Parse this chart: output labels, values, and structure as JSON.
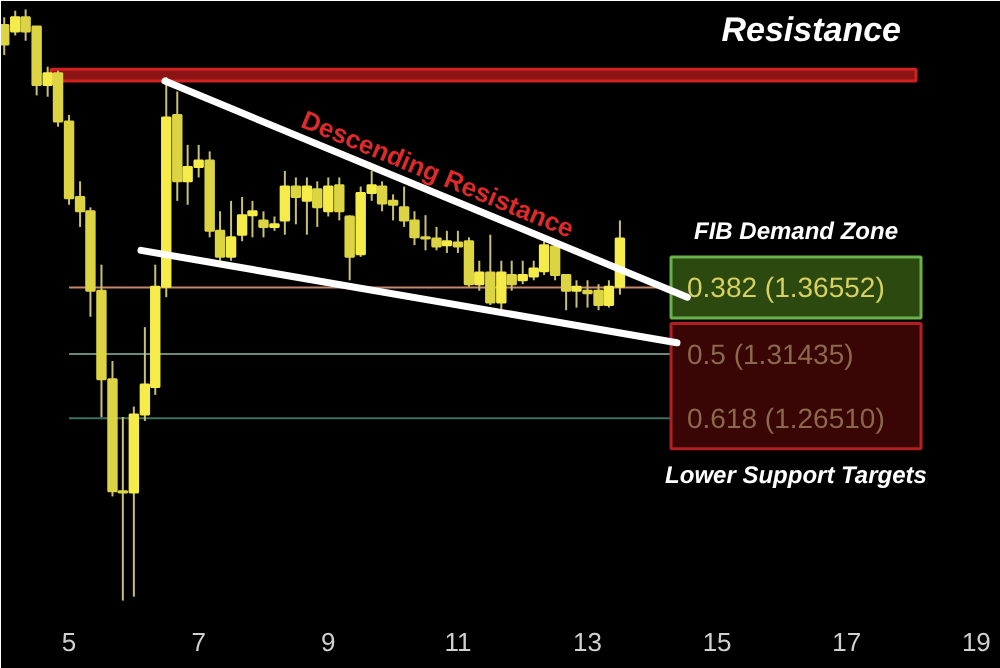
{
  "chart_data": {
    "type": "candlestick",
    "colors": [
      "#dcd442",
      "#f5ec4a",
      "#dcd442",
      "#dcd442",
      "#f5ec4a",
      "#dcd442",
      "#dcd442",
      "#dcd442",
      "#dcd442",
      "#dcd442",
      "#dcd442",
      "#dcd442",
      "#f5ec4a",
      "#f5ec4a",
      "#f5ec4a",
      "#f5ec4a",
      "#dcd442",
      "#f5ec4a",
      "#f5ec4a",
      "#dcd442",
      "#dcd442",
      "#f5ec4a",
      "#f5ec4a",
      "#f5ec4a",
      "#dcd442",
      "#f5ec4a",
      "#f5ec4a",
      "#dcd442",
      "#f5ec4a",
      "#dcd442",
      "#f5ec4a",
      "#dcd442",
      "#dcd442",
      "#f5ec4a",
      "#f5ec4a",
      "#dcd442",
      "#dcd442",
      "#dcd442",
      "#dcd442",
      "#dcd442",
      "#dcd442",
      "#f5ec4a",
      "#dcd442",
      "#dcd442",
      "#f5ec4a",
      "#dcd442",
      "#f5ec4a",
      "#dcd442",
      "#f5ec4a",
      "#f5ec4a",
      "#f5ec4a",
      "#dcd442",
      "#dcd442",
      "#f5ec4a",
      "#dcd442",
      "#dcd442",
      "#f5ec4a",
      "#f5ec4a"
    ],
    "x": [
      4.0,
      4.17,
      4.33,
      4.5,
      4.67,
      4.83,
      5.0,
      5.17,
      5.33,
      5.5,
      5.67,
      5.83,
      6.0,
      6.17,
      6.33,
      6.5,
      6.67,
      6.83,
      7.0,
      7.17,
      7.33,
      7.5,
      7.67,
      7.83,
      8.0,
      8.17,
      8.33,
      8.5,
      8.67,
      8.83,
      9.0,
      9.17,
      9.33,
      9.5,
      9.67,
      9.83,
      10.0,
      10.17,
      10.33,
      10.5,
      10.67,
      10.83,
      11.0,
      11.17,
      11.33,
      11.5,
      11.67,
      11.83,
      12.0,
      12.17,
      12.33,
      12.5,
      12.67,
      12.83,
      13.0,
      13.17,
      13.33,
      13.5
    ],
    "ohlc": [
      [
        1.567,
        1.573,
        1.544,
        1.552
      ],
      [
        1.562,
        1.578,
        1.559,
        1.573
      ],
      [
        1.573,
        1.579,
        1.555,
        1.562
      ],
      [
        1.566,
        1.566,
        1.513,
        1.521
      ],
      [
        1.521,
        1.535,
        1.512,
        1.53
      ],
      [
        1.53,
        1.532,
        1.489,
        1.493
      ],
      [
        1.493,
        1.498,
        1.429,
        1.434
      ],
      [
        1.435,
        1.447,
        1.412,
        1.424
      ],
      [
        1.424,
        1.427,
        1.343,
        1.363
      ],
      [
        1.363,
        1.383,
        1.266,
        1.295
      ],
      [
        1.295,
        1.309,
        1.205,
        1.209
      ],
      [
        1.209,
        1.266,
        1.125,
        1.208
      ],
      [
        1.208,
        1.274,
        1.128,
        1.268
      ],
      [
        1.268,
        1.335,
        1.263,
        1.291
      ],
      [
        1.289,
        1.383,
        1.283,
        1.366
      ],
      [
        1.366,
        1.527,
        1.358,
        1.496
      ],
      [
        1.498,
        1.516,
        1.432,
        1.447
      ],
      [
        1.447,
        1.475,
        1.429,
        1.458
      ],
      [
        1.458,
        1.475,
        1.45,
        1.463
      ],
      [
        1.463,
        1.47,
        1.404,
        1.409
      ],
      [
        1.409,
        1.424,
        1.386,
        1.389
      ],
      [
        1.389,
        1.432,
        1.386,
        1.404
      ],
      [
        1.406,
        1.435,
        1.401,
        1.421
      ],
      [
        1.421,
        1.432,
        1.404,
        1.424
      ],
      [
        1.417,
        1.424,
        1.404,
        1.412
      ],
      [
        1.412,
        1.42,
        1.409,
        1.414
      ],
      [
        1.417,
        1.455,
        1.406,
        1.443
      ],
      [
        1.443,
        1.45,
        1.414,
        1.435
      ],
      [
        1.432,
        1.45,
        1.406,
        1.443
      ],
      [
        1.441,
        1.447,
        1.412,
        1.427
      ],
      [
        1.424,
        1.45,
        1.42,
        1.443
      ],
      [
        1.444,
        1.45,
        1.417,
        1.424
      ],
      [
        1.42,
        1.421,
        1.371,
        1.389
      ],
      [
        1.391,
        1.443,
        1.389,
        1.438
      ],
      [
        1.438,
        1.455,
        1.432,
        1.444
      ],
      [
        1.443,
        1.447,
        1.424,
        1.43
      ],
      [
        1.432,
        1.437,
        1.417,
        1.429
      ],
      [
        1.427,
        1.443,
        1.412,
        1.417
      ],
      [
        1.417,
        1.424,
        1.398,
        1.404
      ],
      [
        1.404,
        1.421,
        1.394,
        1.403
      ],
      [
        1.403,
        1.412,
        1.394,
        1.397
      ],
      [
        1.398,
        1.409,
        1.392,
        1.401
      ],
      [
        1.4,
        1.409,
        1.392,
        1.397
      ],
      [
        1.401,
        1.404,
        1.366,
        1.368
      ],
      [
        1.368,
        1.386,
        1.363,
        1.377
      ],
      [
        1.377,
        1.406,
        1.352,
        1.354
      ],
      [
        1.354,
        1.386,
        1.344,
        1.377
      ],
      [
        1.375,
        1.386,
        1.363,
        1.368
      ],
      [
        1.371,
        1.386,
        1.368,
        1.375
      ],
      [
        1.374,
        1.386,
        1.371,
        1.38
      ],
      [
        1.378,
        1.401,
        1.375,
        1.398
      ],
      [
        1.397,
        1.398,
        1.371,
        1.375
      ],
      [
        1.375,
        1.375,
        1.348,
        1.363
      ],
      [
        1.363,
        1.371,
        1.35,
        1.366
      ],
      [
        1.363,
        1.371,
        1.35,
        1.361
      ],
      [
        1.363,
        1.368,
        1.348,
        1.352
      ],
      [
        1.352,
        1.371,
        1.35,
        1.366
      ],
      [
        1.366,
        1.417,
        1.36,
        1.403
      ]
    ],
    "series": [
      {
        "type": "line",
        "color": "#ffffff",
        "x": [
          6.48,
          14.54
        ],
        "values": [
          1.524,
          1.358
        ]
      },
      {
        "type": "line",
        "color": "#ffffff",
        "x": [
          6.11,
          14.38
        ],
        "values": [
          1.394,
          1.323
        ]
      }
    ],
    "xlim": [
      3.95,
      19.38
    ],
    "xticks": [
      5,
      7,
      9,
      11,
      13,
      15,
      17,
      19
    ],
    "ylim": [
      1.117,
      1.5855
    ],
    "tick_labels": "x",
    "grid": false,
    "ref_lines": [
      {
        "axis": "y",
        "value": 1.36552,
        "label": "0.382 (1.36552)",
        "color": "#c8876a"
      },
      {
        "axis": "y",
        "value": 1.31435,
        "label": "0.5 (1.31435)",
        "color": "#6a8a78"
      },
      {
        "axis": "y",
        "value": 1.2651,
        "label": "0.618 (1.26510)",
        "color": "#3f6f5f"
      }
    ],
    "bands": [
      {
        "axis": "y",
        "from": 1.524,
        "to": 1.533,
        "label": "Resistance",
        "color": "#8b1515"
      }
    ],
    "annotations": [
      "FIB Demand Zone",
      "Lower Support Targets",
      {
        "text": "Descending Resistance",
        "x": 10.6,
        "y": 1.442
      }
    ]
  }
}
